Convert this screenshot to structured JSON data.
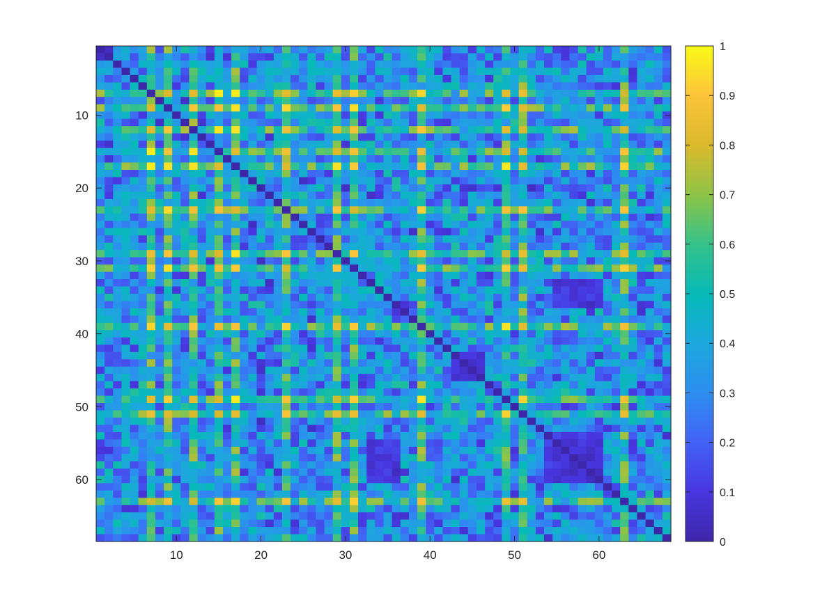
{
  "chart_data": {
    "type": "heatmap",
    "title": "",
    "xlabel": "",
    "ylabel": "",
    "n_rows": 68,
    "n_cols": 68,
    "diagonal_value": 0,
    "x_ticks": [
      10,
      20,
      30,
      40,
      50,
      60
    ],
    "y_ticks": [
      10,
      20,
      30,
      40,
      50,
      60
    ],
    "x_range": [
      0.5,
      68.5
    ],
    "y_range": [
      0.5,
      68.5
    ],
    "y_direction": "reversed",
    "colorbar": {
      "location": "right",
      "colormap": "parula",
      "limits": [
        0,
        1
      ],
      "ticks": [
        0,
        0.1,
        0.2,
        0.3,
        0.4,
        0.5,
        0.6,
        0.7,
        0.8,
        0.9,
        1
      ],
      "tick_labels": [
        "0",
        "0.1",
        "0.2",
        "0.3",
        "0.4",
        "0.5",
        "0.6",
        "0.7",
        "0.8",
        "0.9",
        "1"
      ]
    },
    "high_value_rows": [
      7,
      9,
      12,
      15,
      17,
      23,
      29,
      31,
      39,
      49,
      51,
      63
    ],
    "high_value_cols": [
      7,
      9,
      12,
      15,
      17,
      23,
      29,
      31,
      39,
      49,
      51,
      63
    ],
    "low_value_blocks": [
      {
        "rows": [
          55,
          60
        ],
        "cols": [
          54,
          60
        ]
      },
      {
        "rows": [
          43,
          46
        ],
        "cols": [
          43,
          46
        ]
      },
      {
        "rows": [
          33,
          36
        ],
        "cols": [
          55,
          60
        ]
      }
    ],
    "colormap_stops": [
      {
        "v": 0.0,
        "color": "#3e26a8"
      },
      {
        "v": 0.1,
        "color": "#4836e0"
      },
      {
        "v": 0.2,
        "color": "#4262f5"
      },
      {
        "v": 0.3,
        "color": "#2d8ef0"
      },
      {
        "v": 0.4,
        "color": "#1ca8dc"
      },
      {
        "v": 0.5,
        "color": "#06bab7"
      },
      {
        "v": 0.6,
        "color": "#36c28a"
      },
      {
        "v": 0.7,
        "color": "#8ec447"
      },
      {
        "v": 0.8,
        "color": "#dbb92c"
      },
      {
        "v": 0.9,
        "color": "#fcc43a"
      },
      {
        "v": 1.0,
        "color": "#f9fb15"
      }
    ]
  }
}
